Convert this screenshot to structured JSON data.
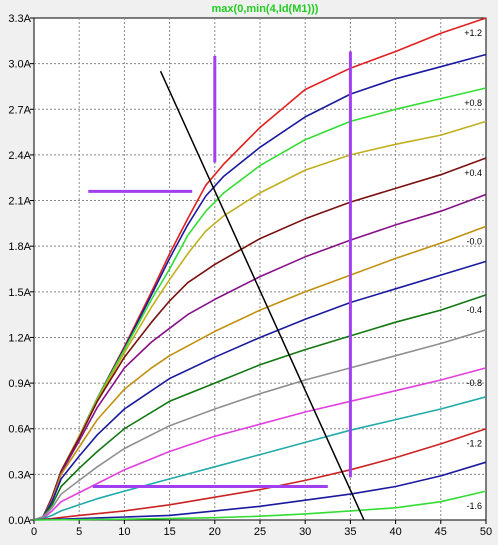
{
  "chart_data": {
    "type": "line",
    "title": "max(0,min(4,Id(M1)))",
    "title_color": "#22cc22",
    "x_ticks": [
      "0",
      "5",
      "10",
      "15",
      "20",
      "25",
      "30",
      "35",
      "40",
      "45",
      "50"
    ],
    "y_ticks": [
      "0.0A",
      "0.3A",
      "0.6A",
      "0.9A",
      "1.2A",
      "1.5A",
      "1.8A",
      "2.1A",
      "2.4A",
      "2.7A",
      "3.0A",
      "3.3A"
    ],
    "xlim": [
      0,
      50
    ],
    "ylim": [
      0,
      3.3
    ],
    "grid": true,
    "series": [
      {
        "name": "+1.2",
        "color": "#e02020",
        "points": [
          [
            0,
            0
          ],
          [
            1,
            0.02
          ],
          [
            2,
            0.15
          ],
          [
            3,
            0.32
          ],
          [
            5,
            0.55
          ],
          [
            7,
            0.8
          ],
          [
            10,
            1.14
          ],
          [
            13,
            1.5
          ],
          [
            15,
            1.75
          ],
          [
            17,
            1.98
          ],
          [
            19,
            2.2
          ],
          [
            21,
            2.34
          ],
          [
            25,
            2.58
          ],
          [
            30,
            2.83
          ],
          [
            35,
            2.97
          ],
          [
            40,
            3.08
          ],
          [
            45,
            3.2
          ],
          [
            50,
            3.3
          ]
        ]
      },
      {
        "name": "",
        "color": "#1a1aa0",
        "points": [
          [
            0,
            0
          ],
          [
            1,
            0.02
          ],
          [
            2,
            0.15
          ],
          [
            3,
            0.32
          ],
          [
            5,
            0.55
          ],
          [
            7,
            0.8
          ],
          [
            10,
            1.13
          ],
          [
            13,
            1.48
          ],
          [
            15,
            1.72
          ],
          [
            17,
            1.94
          ],
          [
            19,
            2.13
          ],
          [
            21,
            2.26
          ],
          [
            25,
            2.45
          ],
          [
            30,
            2.65
          ],
          [
            35,
            2.8
          ],
          [
            40,
            2.9
          ],
          [
            45,
            2.98
          ],
          [
            50,
            3.06
          ]
        ]
      },
      {
        "name": "+0.8",
        "color": "#33dd33",
        "points": [
          [
            0,
            0
          ],
          [
            1,
            0.02
          ],
          [
            2,
            0.15
          ],
          [
            3,
            0.32
          ],
          [
            5,
            0.55
          ],
          [
            7,
            0.8
          ],
          [
            10,
            1.12
          ],
          [
            13,
            1.45
          ],
          [
            15,
            1.65
          ],
          [
            17,
            1.87
          ],
          [
            19,
            2.03
          ],
          [
            21,
            2.15
          ],
          [
            25,
            2.33
          ],
          [
            30,
            2.5
          ],
          [
            35,
            2.62
          ],
          [
            40,
            2.7
          ],
          [
            45,
            2.77
          ],
          [
            50,
            2.84
          ]
        ]
      },
      {
        "name": "",
        "color": "#c0b020",
        "points": [
          [
            0,
            0
          ],
          [
            1,
            0.02
          ],
          [
            2,
            0.15
          ],
          [
            3,
            0.32
          ],
          [
            5,
            0.55
          ],
          [
            7,
            0.79
          ],
          [
            10,
            1.1
          ],
          [
            13,
            1.4
          ],
          [
            15,
            1.58
          ],
          [
            17,
            1.75
          ],
          [
            19,
            1.9
          ],
          [
            21,
            2.0
          ],
          [
            25,
            2.15
          ],
          [
            30,
            2.3
          ],
          [
            35,
            2.4
          ],
          [
            40,
            2.47
          ],
          [
            45,
            2.53
          ],
          [
            50,
            2.62
          ]
        ]
      },
      {
        "name": "+0.4",
        "color": "#7a1010",
        "points": [
          [
            0,
            0
          ],
          [
            1,
            0.02
          ],
          [
            2,
            0.15
          ],
          [
            3,
            0.32
          ],
          [
            5,
            0.54
          ],
          [
            7,
            0.78
          ],
          [
            10,
            1.07
          ],
          [
            13,
            1.3
          ],
          [
            15,
            1.44
          ],
          [
            17,
            1.56
          ],
          [
            20,
            1.68
          ],
          [
            25,
            1.85
          ],
          [
            30,
            1.98
          ],
          [
            35,
            2.09
          ],
          [
            40,
            2.18
          ],
          [
            45,
            2.27
          ],
          [
            50,
            2.38
          ]
        ]
      },
      {
        "name": "",
        "color": "#881188",
        "points": [
          [
            0,
            0
          ],
          [
            1,
            0.02
          ],
          [
            2,
            0.14
          ],
          [
            3,
            0.31
          ],
          [
            5,
            0.52
          ],
          [
            7,
            0.74
          ],
          [
            10,
            1.0
          ],
          [
            13,
            1.17
          ],
          [
            15,
            1.26
          ],
          [
            17,
            1.35
          ],
          [
            20,
            1.45
          ],
          [
            25,
            1.6
          ],
          [
            30,
            1.73
          ],
          [
            35,
            1.84
          ],
          [
            40,
            1.94
          ],
          [
            45,
            2.03
          ],
          [
            50,
            2.14
          ]
        ]
      },
      {
        "name": "-0.0",
        "color": "#c09010",
        "points": [
          [
            0,
            0
          ],
          [
            1,
            0.02
          ],
          [
            2,
            0.13
          ],
          [
            3,
            0.3
          ],
          [
            5,
            0.48
          ],
          [
            7,
            0.66
          ],
          [
            10,
            0.86
          ],
          [
            13,
            1.0
          ],
          [
            15,
            1.08
          ],
          [
            20,
            1.24
          ],
          [
            25,
            1.38
          ],
          [
            30,
            1.5
          ],
          [
            35,
            1.61
          ],
          [
            40,
            1.72
          ],
          [
            45,
            1.82
          ],
          [
            50,
            1.93
          ]
        ]
      },
      {
        "name": "",
        "color": "#1a1aa0",
        "points": [
          [
            0,
            0
          ],
          [
            1,
            0.02
          ],
          [
            2,
            0.12
          ],
          [
            3,
            0.27
          ],
          [
            5,
            0.42
          ],
          [
            7,
            0.56
          ],
          [
            10,
            0.73
          ],
          [
            15,
            0.93
          ],
          [
            20,
            1.07
          ],
          [
            25,
            1.2
          ],
          [
            30,
            1.32
          ],
          [
            35,
            1.43
          ],
          [
            40,
            1.52
          ],
          [
            45,
            1.61
          ],
          [
            50,
            1.7
          ]
        ]
      },
      {
        "name": "-0.4",
        "color": "#117711",
        "points": [
          [
            0,
            0
          ],
          [
            1,
            0.02
          ],
          [
            2,
            0.1
          ],
          [
            3,
            0.22
          ],
          [
            5,
            0.34
          ],
          [
            7,
            0.45
          ],
          [
            10,
            0.6
          ],
          [
            15,
            0.78
          ],
          [
            20,
            0.9
          ],
          [
            25,
            1.02
          ],
          [
            30,
            1.12
          ],
          [
            35,
            1.21
          ],
          [
            40,
            1.3
          ],
          [
            45,
            1.38
          ],
          [
            50,
            1.48
          ]
        ]
      },
      {
        "name": "",
        "color": "#909090",
        "points": [
          [
            0,
            0
          ],
          [
            1,
            0.02
          ],
          [
            2,
            0.08
          ],
          [
            3,
            0.17
          ],
          [
            5,
            0.26
          ],
          [
            7,
            0.35
          ],
          [
            10,
            0.47
          ],
          [
            15,
            0.62
          ],
          [
            20,
            0.73
          ],
          [
            25,
            0.83
          ],
          [
            30,
            0.92
          ],
          [
            35,
            1.0
          ],
          [
            40,
            1.08
          ],
          [
            45,
            1.16
          ],
          [
            50,
            1.25
          ]
        ]
      },
      {
        "name": "-0.8",
        "color": "#e040e0",
        "points": [
          [
            0,
            0
          ],
          [
            1,
            0.01
          ],
          [
            2,
            0.06
          ],
          [
            3,
            0.12
          ],
          [
            5,
            0.18
          ],
          [
            7,
            0.24
          ],
          [
            10,
            0.33
          ],
          [
            15,
            0.45
          ],
          [
            20,
            0.55
          ],
          [
            25,
            0.63
          ],
          [
            30,
            0.71
          ],
          [
            35,
            0.78
          ],
          [
            40,
            0.85
          ],
          [
            45,
            0.92
          ],
          [
            50,
            1.0
          ]
        ]
      },
      {
        "name": "",
        "color": "#22aaaa",
        "points": [
          [
            0,
            0
          ],
          [
            1,
            0.01
          ],
          [
            2,
            0.03
          ],
          [
            3,
            0.06
          ],
          [
            5,
            0.1
          ],
          [
            7,
            0.14
          ],
          [
            10,
            0.19
          ],
          [
            15,
            0.27
          ],
          [
            20,
            0.35
          ],
          [
            25,
            0.43
          ],
          [
            30,
            0.51
          ],
          [
            35,
            0.59
          ],
          [
            40,
            0.66
          ],
          [
            45,
            0.73
          ],
          [
            50,
            0.81
          ]
        ]
      },
      {
        "name": "-1.2",
        "color": "#cc2222",
        "points": [
          [
            0,
            0
          ],
          [
            2,
            0.01
          ],
          [
            5,
            0.03
          ],
          [
            10,
            0.06
          ],
          [
            15,
            0.1
          ],
          [
            20,
            0.15
          ],
          [
            25,
            0.2
          ],
          [
            30,
            0.26
          ],
          [
            35,
            0.33
          ],
          [
            40,
            0.41
          ],
          [
            45,
            0.5
          ],
          [
            50,
            0.6
          ]
        ]
      },
      {
        "name": "",
        "color": "#1a1aa0",
        "points": [
          [
            0,
            0
          ],
          [
            5,
            0.01
          ],
          [
            10,
            0.02
          ],
          [
            15,
            0.03
          ],
          [
            20,
            0.06
          ],
          [
            25,
            0.09
          ],
          [
            30,
            0.13
          ],
          [
            35,
            0.17
          ],
          [
            40,
            0.22
          ],
          [
            45,
            0.29
          ],
          [
            50,
            0.38
          ]
        ]
      },
      {
        "name": "-1.6",
        "color": "#33dd33",
        "points": [
          [
            0,
            0
          ],
          [
            10,
            0.005
          ],
          [
            20,
            0.015
          ],
          [
            25,
            0.025
          ],
          [
            30,
            0.04
          ],
          [
            35,
            0.06
          ],
          [
            40,
            0.08
          ],
          [
            45,
            0.12
          ],
          [
            50,
            0.19
          ]
        ]
      }
    ],
    "annotations": {
      "load_line": {
        "color": "#000000",
        "points": [
          [
            14,
            2.95
          ],
          [
            36.5,
            0
          ]
        ]
      },
      "markers": [
        {
          "color": "#a040f0",
          "points": [
            [
              6,
              2.16
            ],
            [
              17.5,
              2.16
            ]
          ]
        },
        {
          "color": "#a040f0",
          "points": [
            [
              20,
              2.35
            ],
            [
              20,
              3.05
            ]
          ]
        },
        {
          "color": "#a040f0",
          "points": [
            [
              35,
              0.28
            ],
            [
              35,
              3.08
            ]
          ]
        },
        {
          "color": "#a040f0",
          "points": [
            [
              6.5,
              0.22
            ],
            [
              32.5,
              0.22
            ]
          ]
        }
      ]
    }
  }
}
